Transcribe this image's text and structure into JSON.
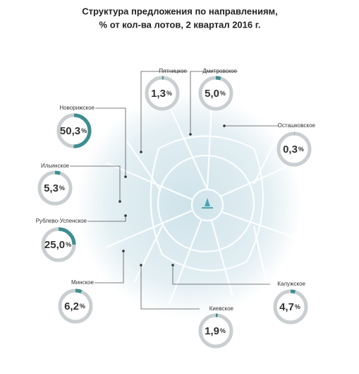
{
  "chart_data": {
    "type": "ring",
    "title": "Структура предложения по направлениям,",
    "subtitle": "% от кол-ва лотов, 2 квартал 2016 г.",
    "categories": [
      "Пятницкое",
      "Дмитровское",
      "Новорижское",
      "Осташковское",
      "Ильинское",
      "Рублево-Успенское",
      "Минское",
      "Калужское",
      "Киевское"
    ],
    "values": [
      1.3,
      5.0,
      50.3,
      0.3,
      5.3,
      25.0,
      6.2,
      4.7,
      1.9
    ],
    "value_labels": [
      "1,3",
      "5,0",
      "50,3",
      "0,3",
      "5,3",
      "25,0",
      "6,2",
      "4,7",
      "1,9"
    ],
    "unit": "%",
    "ylim": [
      0,
      100
    ],
    "color": "#3d8e91",
    "track_color": "#c9cfd1"
  }
}
